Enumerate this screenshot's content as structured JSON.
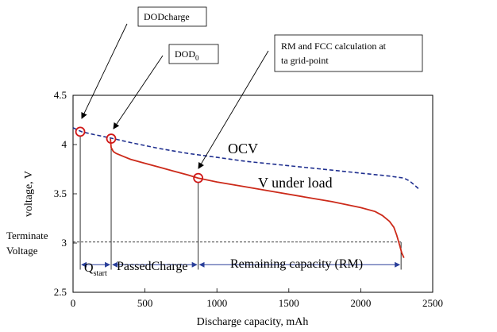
{
  "chart_data": {
    "type": "line",
    "xlabel": "Discharge capacity, mAh",
    "ylabel": "voltage, V",
    "xlim": [
      0,
      2500
    ],
    "ylim": [
      2.5,
      4.5
    ],
    "x_ticks": [
      0,
      500,
      1000,
      1500,
      2000,
      2500
    ],
    "y_ticks": [
      2.5,
      3,
      3.5,
      4,
      4.5
    ],
    "x_tick_labels": [
      "0",
      "500",
      "1000",
      "1500",
      "2000",
      "2500"
    ],
    "y_tick_labels": [
      "2.5",
      "3",
      "3.5",
      "4",
      "4.5"
    ],
    "series": [
      {
        "name": "OCV",
        "style": "dashed",
        "color": "#1f2f8f",
        "x": [
          0,
          60,
          150,
          250,
          400,
          600,
          800,
          1000,
          1200,
          1400,
          1600,
          1800,
          2000,
          2200,
          2300,
          2340,
          2380,
          2410
        ],
        "y": [
          4.17,
          4.13,
          4.1,
          4.07,
          4.02,
          3.96,
          3.91,
          3.87,
          3.83,
          3.8,
          3.77,
          3.74,
          3.71,
          3.68,
          3.66,
          3.63,
          3.58,
          3.54
        ]
      },
      {
        "name": "V under load",
        "style": "solid",
        "color": "#cc2a1a",
        "x": [
          260,
          265,
          280,
          300,
          350,
          400,
          500,
          600,
          700,
          800,
          870,
          1000,
          1200,
          1400,
          1600,
          1800,
          2000,
          2100,
          2150,
          2200,
          2230,
          2250,
          2270,
          2285,
          2300
        ],
        "y": [
          4.06,
          3.97,
          3.93,
          3.91,
          3.88,
          3.85,
          3.81,
          3.77,
          3.73,
          3.69,
          3.66,
          3.62,
          3.57,
          3.52,
          3.47,
          3.42,
          3.36,
          3.32,
          3.28,
          3.22,
          3.16,
          3.08,
          2.98,
          2.9,
          2.85
        ]
      }
    ],
    "terminate_voltage": 3.01,
    "markers": [
      {
        "name": "DODcharge",
        "x": 50,
        "y": 4.13
      },
      {
        "name": "DOD0",
        "x": 265,
        "y": 4.06
      },
      {
        "name": "grid-point",
        "x": 870,
        "y": 3.66
      }
    ],
    "vertical_lines_x": [
      50,
      265,
      870,
      2280
    ],
    "regions": [
      {
        "label": "Q",
        "subscript": "start",
        "from": 50,
        "to": 265
      },
      {
        "label": "PassedCharge",
        "from": 265,
        "to": 870
      },
      {
        "label": "Remaining capacity (RM)",
        "from": 870,
        "to": 2280
      }
    ],
    "annotations": {
      "dodcharge": "DODcharge",
      "dod0_main": "DOD",
      "dod0_sub": "0",
      "rm_line1": "RM and FCC calculation at",
      "rm_line2": "ta grid-point",
      "ocv": "OCV",
      "vload": "V under load",
      "terminate_line1": "Terminate",
      "terminate_line2": "Voltage"
    },
    "colors": {
      "ocv": "#1f2f8f",
      "load": "#cc2a1a",
      "marker": "#d01818",
      "arrows": "#2a3f9a"
    }
  }
}
